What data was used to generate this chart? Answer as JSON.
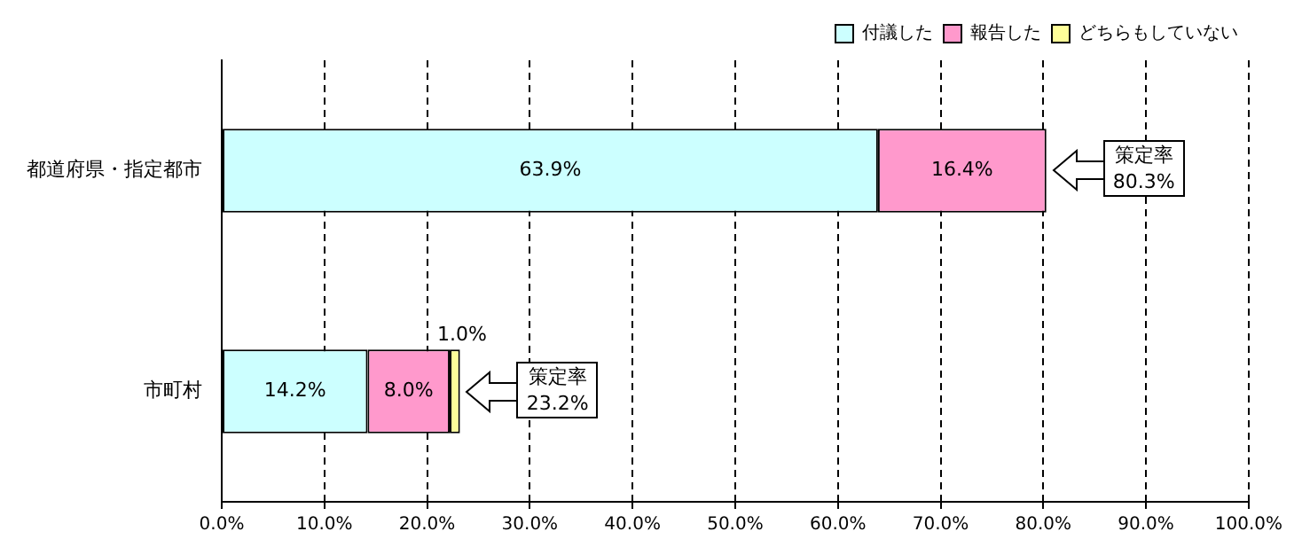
{
  "chart_data": {
    "type": "bar",
    "orientation": "horizontal",
    "stacked": true,
    "categories": [
      "都道府県・指定都市",
      "市町村"
    ],
    "series": [
      {
        "name": "付議した",
        "color": "#ccffff",
        "values": [
          63.9,
          14.2
        ],
        "value_labels": [
          "63.9%",
          "14.2%"
        ]
      },
      {
        "name": "報告した",
        "color": "#ff99cc",
        "values": [
          16.4,
          8.0
        ],
        "value_labels": [
          "16.4%",
          "8.0%"
        ]
      },
      {
        "name": "どちらもしていない",
        "color": "#ffff99",
        "values": [
          null,
          1.0
        ],
        "value_labels": [
          null,
          "1.0%"
        ]
      }
    ],
    "xlim": [
      0,
      100
    ],
    "xticks": [
      {
        "value": 0,
        "label": "0.0%"
      },
      {
        "value": 10,
        "label": "10.0%"
      },
      {
        "value": 20,
        "label": "20.0%"
      },
      {
        "value": 30,
        "label": "30.0%"
      },
      {
        "value": 40,
        "label": "40.0%"
      },
      {
        "value": 50,
        "label": "50.0%"
      },
      {
        "value": 60,
        "label": "60.0%"
      },
      {
        "value": 70,
        "label": "70.0%"
      },
      {
        "value": 80,
        "label": "80.0%"
      },
      {
        "value": 90,
        "label": "90.0%"
      },
      {
        "value": 100,
        "label": "100.0%"
      }
    ],
    "grid": "x",
    "legend": "top right",
    "annotations": [
      "策定率\n80.3%",
      "策定率\n23.2%"
    ]
  }
}
